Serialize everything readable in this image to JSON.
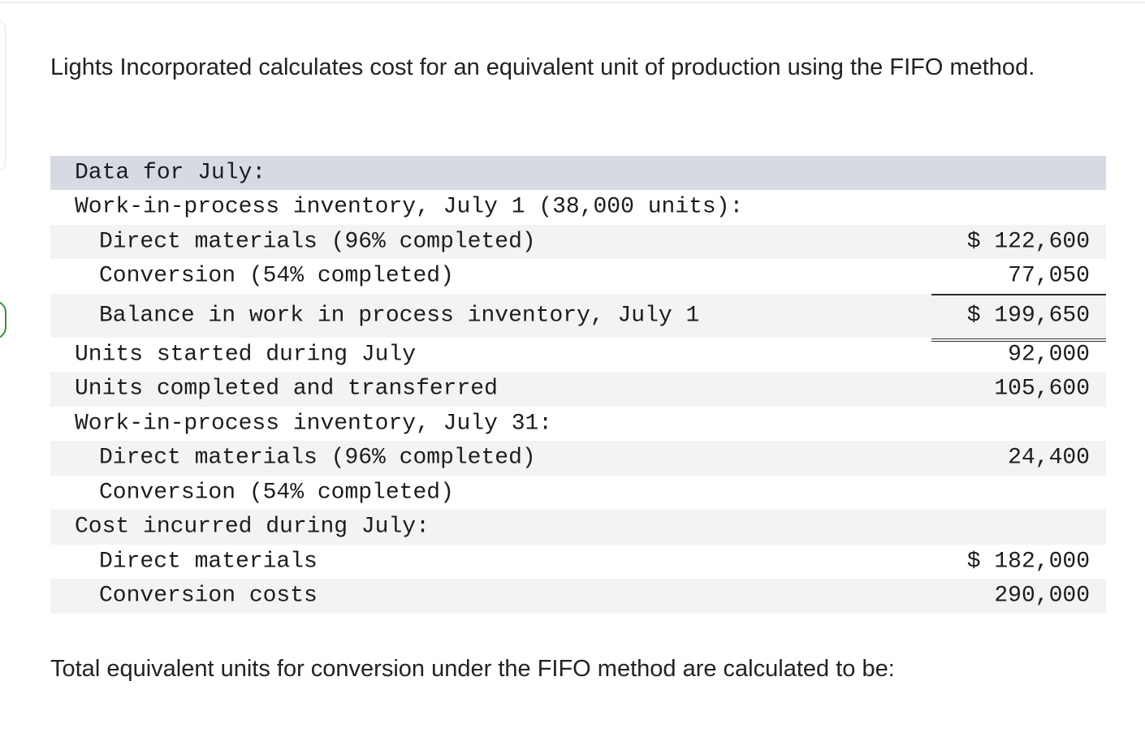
{
  "question": {
    "intro": "Lights Incorporated calculates cost for an equivalent unit of production using the FIFO method.",
    "prompt": "Total equivalent units for conversion under the FIFO method are calculated to be:"
  },
  "table": {
    "header": "Data for July:",
    "rows": [
      {
        "label": "Work-in-process inventory, July 1 (38,000 units):",
        "value": ""
      },
      {
        "label": "Direct materials (96% completed)",
        "value": "$ 122,600"
      },
      {
        "label": "Conversion (54% completed)",
        "value": "77,050"
      },
      {
        "label": "Balance in work in process inventory, July 1",
        "value": "$ 199,650"
      },
      {
        "label": "Units started during July",
        "value": "92,000"
      },
      {
        "label": "Units completed and transferred",
        "value": "105,600"
      },
      {
        "label": "Work-in-process inventory, July 31:",
        "value": ""
      },
      {
        "label": "Direct materials (96% completed)",
        "value": "24,400"
      },
      {
        "label": "Conversion (54% completed)",
        "value": ""
      },
      {
        "label": "Cost incurred during July:",
        "value": ""
      },
      {
        "label": "Direct materials",
        "value": "$ 182,000"
      },
      {
        "label": "Conversion costs",
        "value": "290,000"
      }
    ]
  }
}
